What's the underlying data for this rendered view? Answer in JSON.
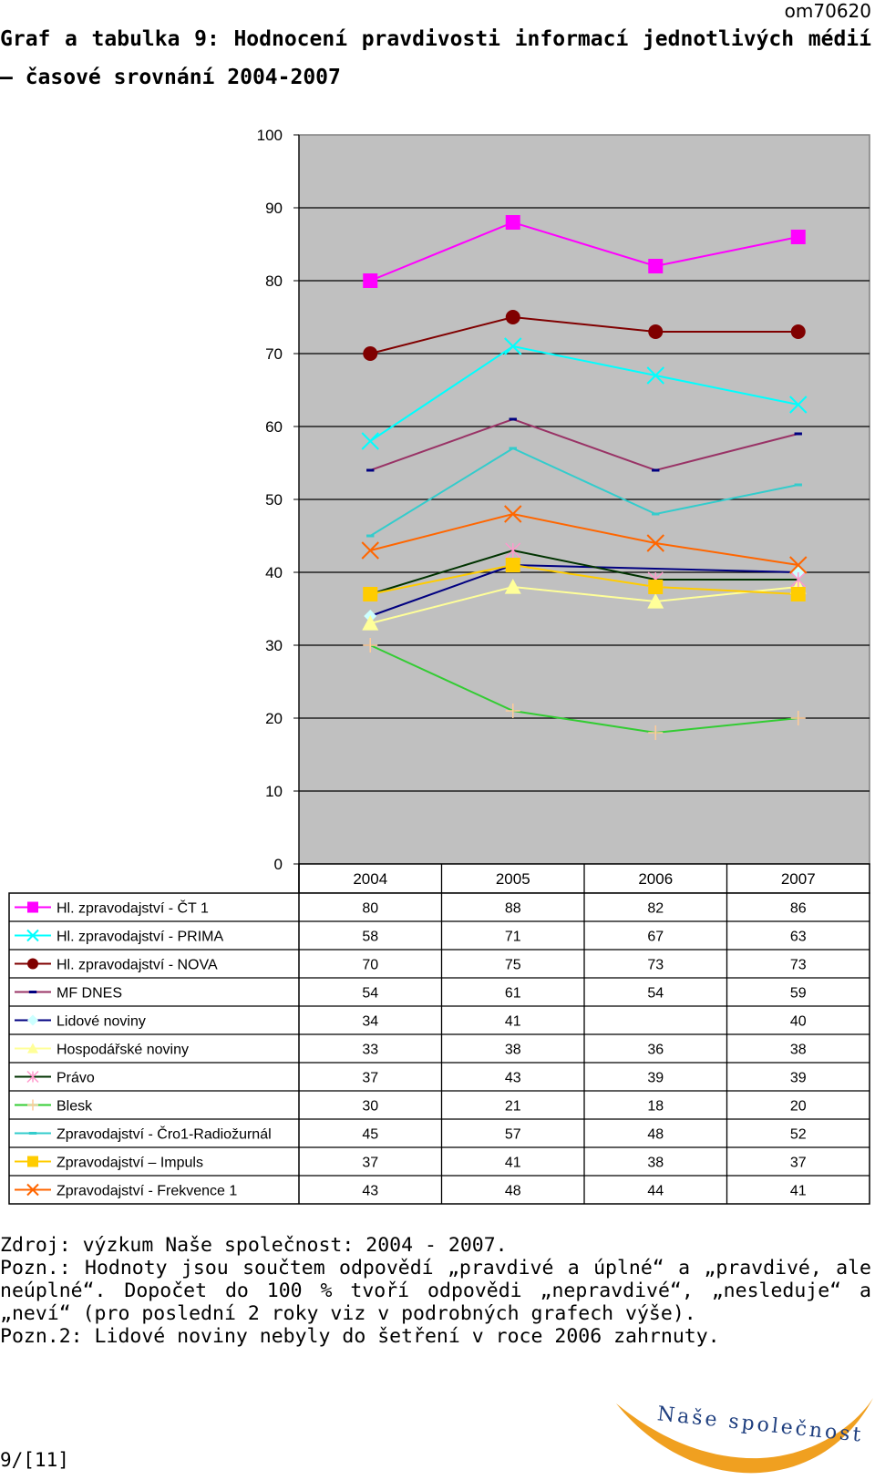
{
  "document": {
    "id": "om70620",
    "title": "Graf a tabulka 9: Hodnocení pravdivosti informací jednotlivých médií – časové srovnání 2004-2007",
    "notes": [
      "Zdroj: výzkum Naše společnost: 2004 - 2007.",
      "Pozn.: Hodnoty jsou součtem odpovědí „pravdivé a úplné“ a „pravdivé, ale neúplné“. Dopočet do 100 % tvoří odpovědi „nepravdivé“, „nesleduje“ a „neví“ (pro poslední 2 roky viz v podrobných grafech výše).",
      "Pozn.2: Lidové noviny nebyly do šetření v roce 2006 zahrnuty."
    ],
    "page_number": "9/[11]",
    "logo_text": "Naše společnost"
  },
  "chart_data": {
    "type": "line",
    "title": "",
    "xlabel": "",
    "ylabel": "",
    "categories": [
      "2004",
      "2005",
      "2006",
      "2007"
    ],
    "ylim": [
      0,
      100
    ],
    "yticks": [
      0,
      10,
      20,
      30,
      40,
      50,
      60,
      70,
      80,
      90,
      100
    ],
    "grid": true,
    "plot_background": "#c0c0c0",
    "legend": "data table below the chart",
    "series": [
      {
        "name": "Hl. zpravodajství - ČT 1",
        "values": [
          80,
          88,
          82,
          86
        ],
        "color": "#ff00ff",
        "marker": "square"
      },
      {
        "name": "Hl. zpravodajství - PRIMA",
        "values": [
          58,
          71,
          67,
          63
        ],
        "color": "#00ffff",
        "marker": "x"
      },
      {
        "name": "Hl. zpravodajství - NOVA",
        "values": [
          70,
          75,
          73,
          73
        ],
        "color": "#800000",
        "marker": "circle"
      },
      {
        "name": "MF DNES",
        "values": [
          54,
          61,
          54,
          59
        ],
        "color": "#993366",
        "marker": "dash"
      },
      {
        "name": "Lidové noviny",
        "values": [
          34,
          41,
          null,
          40
        ],
        "color": "#000080",
        "marker": "diamond"
      },
      {
        "name": "Hospodářské noviny",
        "values": [
          33,
          38,
          36,
          38
        ],
        "color": "#ffff99",
        "marker": "triangle"
      },
      {
        "name": "Právo",
        "values": [
          37,
          43,
          39,
          39
        ],
        "color": "#003300",
        "marker": "asterisk"
      },
      {
        "name": "Blesk",
        "values": [
          30,
          21,
          18,
          20
        ],
        "color": "#33cc33",
        "marker": "plus"
      },
      {
        "name": "Zpravodajství - Čro1-Radiožurnál",
        "values": [
          45,
          57,
          48,
          52
        ],
        "color": "#33cccc",
        "marker": "dash"
      },
      {
        "name": "Zpravodajství – Impuls",
        "values": [
          37,
          41,
          38,
          37
        ],
        "color": "#ffcc00",
        "marker": "square"
      },
      {
        "name": "Zpravodajství - Frekvence 1",
        "values": [
          43,
          48,
          44,
          41
        ],
        "color": "#ff6600",
        "marker": "x"
      }
    ],
    "marker_colors": {
      "MF DNES": "#000080",
      "Lidové noviny": "#ccffff",
      "Právo": "#ff99cc",
      "Blesk": "#ffcc99"
    }
  }
}
